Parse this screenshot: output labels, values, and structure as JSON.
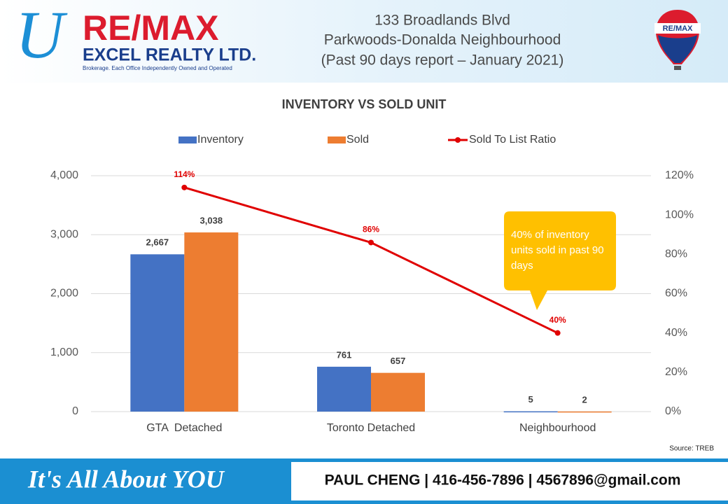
{
  "header": {
    "logo_mark": "U",
    "logo_brand": "RE/MAX",
    "logo_company": "EXCEL REALTY LTD.",
    "logo_tagline": "Brokerage. Each Office Independently Owned and Operated",
    "title_lines": [
      "133 Broadlands Blvd",
      "Parkwoods-Donalda Neighbourhood",
      "(Past 90 days report – January 2021)"
    ],
    "balloon_text": "RE/MAX"
  },
  "chart_data": {
    "type": "bar",
    "title": "INVENTORY VS SOLD UNIT",
    "categories": [
      "GTA  Detached",
      "Toronto Detached",
      "Neighbourhood"
    ],
    "series": [
      {
        "name": "Inventory",
        "type": "bar",
        "color": "#4472c4",
        "values": [
          2667,
          761,
          5
        ],
        "value_labels": [
          "2,667",
          "761",
          "5"
        ]
      },
      {
        "name": "Sold",
        "type": "bar",
        "color": "#ed7d31",
        "values": [
          3038,
          657,
          2
        ],
        "value_labels": [
          "3,038",
          "657",
          "2"
        ]
      },
      {
        "name": "Sold To List Ratio",
        "type": "line",
        "axis": "y2",
        "color": "#e00000",
        "values": [
          114,
          86,
          40
        ],
        "value_labels": [
          "114%",
          "86%",
          "40%"
        ]
      }
    ],
    "ylim": [
      0,
      4000
    ],
    "yticks": [
      0,
      {
        "value": 1000,
        "label": "1,000"
      },
      {
        "value": 2000,
        "label": "2,000"
      },
      {
        "value": 3000,
        "label": "3,000"
      },
      {
        "value": 4000,
        "label": "4,000"
      }
    ],
    "y2lim": [
      0,
      120
    ],
    "y2ticks": [
      {
        "value": 0,
        "label": "0%"
      },
      {
        "value": 20,
        "label": "20%"
      },
      {
        "value": 40,
        "label": "40%"
      },
      {
        "value": 60,
        "label": "60%"
      },
      {
        "value": 80,
        "label": "80%"
      },
      {
        "value": 100,
        "label": "100%"
      },
      {
        "value": 120,
        "label": "120%"
      }
    ],
    "grid": true,
    "legend": "top",
    "annotation": "40% of inventory units sold in past 90 days",
    "source": "Source: TREB"
  },
  "footer": {
    "slogan": "It's All About YOU",
    "contact": "PAUL CHENG | 416-456-7896 | 4567896@gmail.com"
  }
}
